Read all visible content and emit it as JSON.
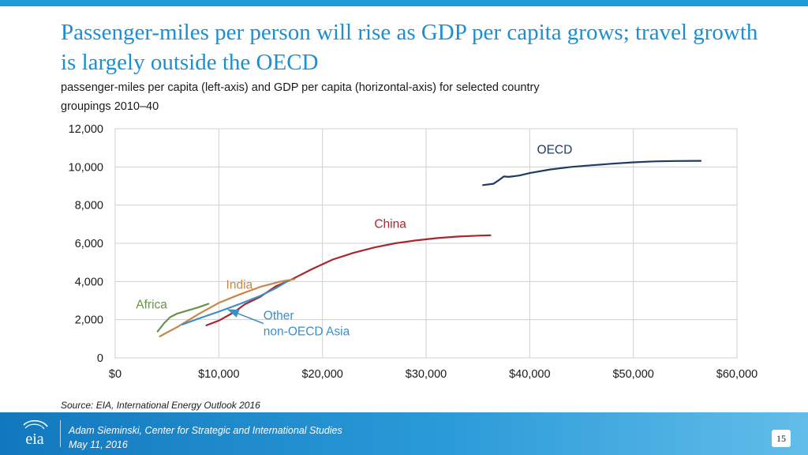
{
  "header": {
    "title": "Passenger-miles per person will rise as GDP per capita grows; travel growth is largely outside the OECD",
    "subtitle": "passenger-miles per capita (left-axis) and GDP per capita (horizontal-axis) for selected country groupings 2010–40"
  },
  "chart_data": {
    "type": "line",
    "title": "Passenger-miles per person will rise as GDP per capita grows; travel growth is largely outside the OECD",
    "xlabel": "GDP per capita",
    "ylabel": "passenger-miles per capita",
    "xlim": [
      0,
      60000
    ],
    "ylim": [
      0,
      12000
    ],
    "grid": true,
    "x_tick_values": [
      0,
      10000,
      20000,
      30000,
      40000,
      50000,
      60000
    ],
    "x_tick_labels": [
      "$0",
      "$10,000",
      "$20,000",
      "$30,000",
      "$40,000",
      "$50,000",
      "$60,000"
    ],
    "y_tick_values": [
      0,
      2000,
      4000,
      6000,
      8000,
      10000,
      12000
    ],
    "y_tick_labels": [
      "0",
      "2,000",
      "4,000",
      "6,000",
      "8,000",
      "10,000",
      "12,000"
    ],
    "series": [
      {
        "name": "OECD",
        "color": "#1f3a64",
        "label": [
          "OECD"
        ],
        "label_at": [
          40700,
          10700
        ],
        "x": [
          35500,
          36500,
          37000,
          37500,
          38000,
          39000,
          40000,
          42000,
          44000,
          46000,
          48000,
          50000,
          52000,
          54000,
          56500
        ],
        "y": [
          9050,
          9120,
          9300,
          9500,
          9480,
          9550,
          9680,
          9870,
          10000,
          10090,
          10170,
          10240,
          10290,
          10310,
          10320
        ]
      },
      {
        "name": "China",
        "color": "#a8262d",
        "label": [
          "China"
        ],
        "label_at": [
          25000,
          6800
        ],
        "x": [
          8800,
          10000,
          11500,
          12500,
          14000,
          15500,
          17000,
          19000,
          21000,
          23000,
          25000,
          27000,
          29000,
          31000,
          33000,
          35000,
          36200
        ],
        "y": [
          1700,
          1950,
          2400,
          2800,
          3200,
          3750,
          4100,
          4650,
          5150,
          5500,
          5780,
          6000,
          6150,
          6270,
          6350,
          6400,
          6420
        ]
      },
      {
        "name": "India",
        "color": "#c8864a",
        "label": [
          "India"
        ],
        "label_at": [
          10700,
          3620
        ],
        "x": [
          4300,
          6000,
          8000,
          10000,
          12000,
          14000,
          16000,
          17300
        ],
        "y": [
          1120,
          1620,
          2280,
          2880,
          3320,
          3720,
          4000,
          4120
        ]
      },
      {
        "name": "Other non-OECD Asia",
        "color": "#3f8fc7",
        "label": [
          "Other",
          "non-OECD Asia"
        ],
        "label_at": [
          14300,
          2000
        ],
        "x": [
          6500,
          8000,
          10000,
          12000,
          14000,
          15500,
          16600
        ],
        "y": [
          1750,
          2050,
          2420,
          2820,
          3250,
          3650,
          4000
        ]
      },
      {
        "name": "Africa",
        "color": "#69934b",
        "label": [
          "Africa"
        ],
        "label_at": [
          2000,
          2580
        ],
        "x": [
          4100,
          4700,
          5300,
          6000,
          7000,
          8000,
          9000
        ],
        "y": [
          1380,
          1800,
          2130,
          2320,
          2480,
          2640,
          2830
        ]
      }
    ],
    "annotations": [
      {
        "text": "",
        "from": [
          14300,
          1800
        ],
        "to": [
          10900,
          2520
        ],
        "color": "#3f8fc7"
      }
    ]
  },
  "source": "Source:  EIA, International Energy Outlook 2016",
  "footer": {
    "logo_text": "eia",
    "line1": "Adam Sieminski, Center for Strategic and International Studies",
    "line2": "May 11, 2016",
    "page_number": "15"
  },
  "colors": {
    "title": "#1b8fd1",
    "accent_bar": "#1c9ad6",
    "footer_start": "#1278be",
    "footer_end": "#62bde9"
  }
}
